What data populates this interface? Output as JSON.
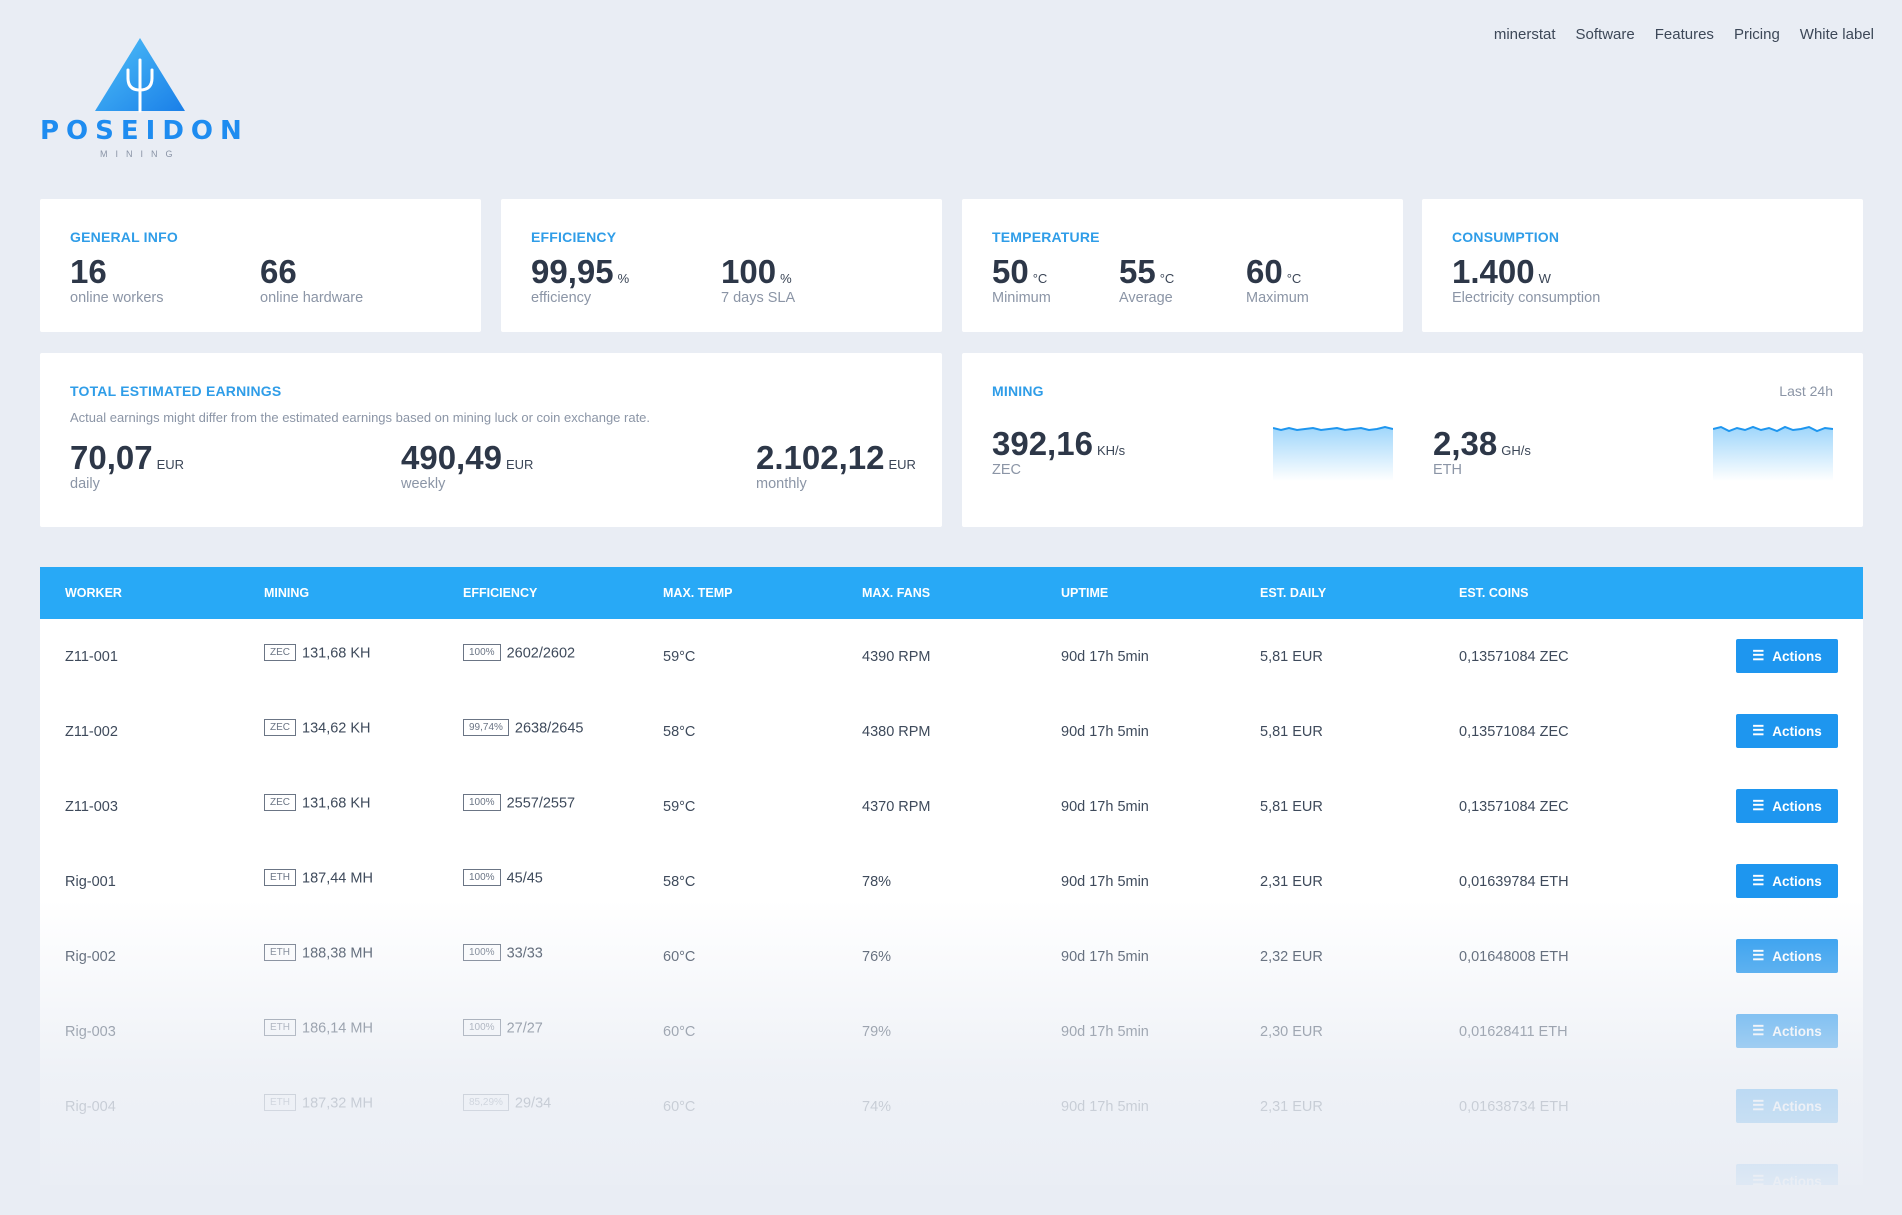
{
  "nav": [
    "minerstat",
    "Software",
    "Features",
    "Pricing",
    "White label"
  ],
  "logo": {
    "name": "POSEIDON",
    "sub": "MINING"
  },
  "general": {
    "title": "GENERAL INFO",
    "stats": [
      {
        "value": "16",
        "label": "online workers"
      },
      {
        "value": "66",
        "label": "online hardware"
      }
    ]
  },
  "efficiency": {
    "title": "EFFICIENCY",
    "stats": [
      {
        "value": "99,95",
        "unit": "%",
        "label": "efficiency"
      },
      {
        "value": "100",
        "unit": "%",
        "label": "7 days SLA"
      }
    ]
  },
  "temperature": {
    "title": "TEMPERATURE",
    "stats": [
      {
        "value": "50",
        "unit": "°C",
        "label": "Minimum"
      },
      {
        "value": "55",
        "unit": "°C",
        "label": "Average"
      },
      {
        "value": "60",
        "unit": "°C",
        "label": "Maximum"
      }
    ]
  },
  "consumption": {
    "title": "CONSUMPTION",
    "stats": [
      {
        "value": "1.400",
        "unit": "W",
        "label": "Electricity consumption"
      }
    ]
  },
  "earnings": {
    "title": "TOTAL ESTIMATED EARNINGS",
    "note": "Actual earnings might differ from the estimated earnings based on mining luck or coin exchange rate.",
    "stats": [
      {
        "value": "70,07",
        "unit": "EUR",
        "label": "daily"
      },
      {
        "value": "490,49",
        "unit": "EUR",
        "label": "weekly"
      },
      {
        "value": "2.102,12",
        "unit": "EUR",
        "label": "monthly"
      }
    ]
  },
  "mining": {
    "title": "MINING",
    "period": "Last 24h",
    "stats": [
      {
        "value": "392,16",
        "unit": "KH/s",
        "label": "ZEC"
      },
      {
        "value": "2,38",
        "unit": "GH/s",
        "label": "ETH"
      }
    ]
  },
  "table": {
    "columns": [
      "WORKER",
      "MINING",
      "EFFICIENCY",
      "MAX. TEMP",
      "MAX. FANS",
      "UPTIME",
      "EST. DAILY",
      "EST. COINS"
    ],
    "action_label": "Actions",
    "rows": [
      {
        "worker": "Z11-001",
        "coin": "ZEC",
        "mining": "131,68 KH",
        "eff_tag": "100%",
        "eff": "2602/2602",
        "temp": "59°C",
        "fans": "4390 RPM",
        "uptime": "90d 17h 5min",
        "daily": "5,81 EUR",
        "coins": "0,13571084 ZEC"
      },
      {
        "worker": "Z11-002",
        "coin": "ZEC",
        "mining": "134,62 KH",
        "eff_tag": "99,74%",
        "eff": "2638/2645",
        "temp": "58°C",
        "fans": "4380 RPM",
        "uptime": "90d 17h 5min",
        "daily": "5,81 EUR",
        "coins": "0,13571084 ZEC"
      },
      {
        "worker": "Z11-003",
        "coin": "ZEC",
        "mining": "131,68 KH",
        "eff_tag": "100%",
        "eff": "2557/2557",
        "temp": "59°C",
        "fans": "4370 RPM",
        "uptime": "90d 17h 5min",
        "daily": "5,81 EUR",
        "coins": "0,13571084 ZEC"
      },
      {
        "worker": "Rig-001",
        "coin": "ETH",
        "mining": "187,44 MH",
        "eff_tag": "100%",
        "eff": "45/45",
        "temp": "58°C",
        "fans": "78%",
        "uptime": "90d 17h 5min",
        "daily": "2,31 EUR",
        "coins": "0,01639784 ETH"
      },
      {
        "worker": "Rig-002",
        "coin": "ETH",
        "mining": "188,38 MH",
        "eff_tag": "100%",
        "eff": "33/33",
        "temp": "60°C",
        "fans": "76%",
        "uptime": "90d 17h 5min",
        "daily": "2,32 EUR",
        "coins": "0,01648008 ETH"
      },
      {
        "worker": "Rig-003",
        "coin": "ETH",
        "mining": "186,14 MH",
        "eff_tag": "100%",
        "eff": "27/27",
        "temp": "60°C",
        "fans": "79%",
        "uptime": "90d 17h 5min",
        "daily": "2,30 EUR",
        "coins": "0,01628411 ETH"
      },
      {
        "worker": "Rig-004",
        "coin": "ETH",
        "mining": "187,32 MH",
        "eff_tag": "85,29%",
        "eff": "29/34",
        "temp": "60°C",
        "fans": "74%",
        "uptime": "90d 17h 5min",
        "daily": "2,31 EUR",
        "coins": "0,01638734 ETH"
      }
    ]
  },
  "colors": {
    "accent": "#28a9f6",
    "button": "#1e96ef",
    "title": "#2f9de8",
    "background": "#e9edf4"
  }
}
